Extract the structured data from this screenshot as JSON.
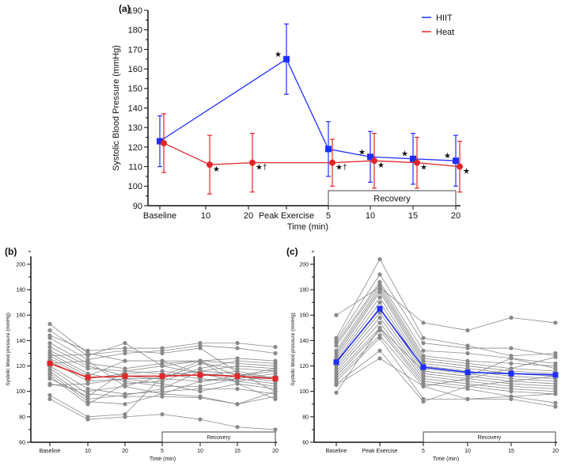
{
  "colors": {
    "hiit": "#1f2eff",
    "heat": "#e0262a",
    "individual": "#8a8a8a"
  },
  "chart_data": [
    {
      "panel": "(a)",
      "type": "line",
      "ylabel": "Systolic Blood Pressure (mmHg)",
      "xlabel": "Time (min)",
      "ylim": [
        90,
        190
      ],
      "yticks": [
        90,
        100,
        110,
        120,
        130,
        140,
        150,
        160,
        170,
        180,
        190
      ],
      "categories": [
        "Baseline",
        "10",
        "20",
        "Peak Exercise",
        "5",
        "10",
        "15",
        "20"
      ],
      "bracket_label": "Recovery",
      "legend": {
        "position": "top-right",
        "entries": [
          "HIIT",
          "Heat"
        ]
      },
      "series": [
        {
          "name": "HIIT",
          "color": "#1f2eff",
          "marker": "square",
          "points": [
            {
              "cat": 0,
              "mean": 123,
              "low": 110,
              "high": 136,
              "mark": ""
            },
            {
              "cat": 3,
              "mean": 165,
              "low": 147,
              "high": 183,
              "mark": "★"
            },
            {
              "cat": 4,
              "mean": 119,
              "low": 105,
              "high": 133,
              "mark": ""
            },
            {
              "cat": 5,
              "mean": 115,
              "low": 102,
              "high": 128,
              "mark": "★"
            },
            {
              "cat": 6,
              "mean": 114,
              "low": 101,
              "high": 127,
              "mark": "★"
            },
            {
              "cat": 7,
              "mean": 113,
              "low": 100,
              "high": 126,
              "mark": "★"
            }
          ]
        },
        {
          "name": "Heat",
          "color": "#e0262a",
          "marker": "circle",
          "points": [
            {
              "cat": 0,
              "mean": 122,
              "low": 107,
              "high": 137,
              "mark": ""
            },
            {
              "cat": 1,
              "mean": 111,
              "low": 96,
              "high": 126,
              "mark": "★"
            },
            {
              "cat": 2,
              "mean": 112,
              "low": 97,
              "high": 127,
              "mark": "★†"
            },
            {
              "cat": 4,
              "mean": 112,
              "low": 100,
              "high": 124,
              "mark": "★†"
            },
            {
              "cat": 5,
              "mean": 113,
              "low": 99,
              "high": 127,
              "mark": "★"
            },
            {
              "cat": 6,
              "mean": 112,
              "low": 99,
              "high": 125,
              "mark": "★"
            },
            {
              "cat": 7,
              "mean": 110,
              "low": 97,
              "high": 123,
              "mark": "★"
            }
          ]
        }
      ]
    },
    {
      "panel": "(b)",
      "type": "line",
      "ylabel": "Systolic blood pressure (mmHg)",
      "xlabel": "Time (min)",
      "ylim": [
        60,
        200
      ],
      "yticks": [
        60,
        80,
        100,
        120,
        140,
        160,
        180,
        200
      ],
      "categories": [
        "Baseline",
        "10",
        "20",
        "5",
        "10",
        "15",
        "20"
      ],
      "bracket_label": "Recovery",
      "mean": {
        "color": "#e0262a",
        "values": [
          122,
          111,
          112,
          112,
          113,
          112,
          110
        ]
      },
      "individuals": [
        [
          153,
          130,
          124,
          124,
          114,
          112,
          108
        ],
        [
          148,
          128,
          138,
          120,
          124,
          112,
          118
        ],
        [
          144,
          132,
          134,
          134,
          138,
          138,
          135
        ],
        [
          142,
          125,
          130,
          132,
          136,
          134,
          130
        ],
        [
          138,
          122,
          118,
          122,
          124,
          126,
          124
        ],
        [
          135,
          120,
          112,
          110,
          122,
          118,
          116
        ],
        [
          132,
          118,
          116,
          114,
          110,
          108,
          112
        ],
        [
          130,
          114,
          108,
          104,
          104,
          110,
          114
        ],
        [
          128,
          112,
          124,
          124,
          124,
          122,
          120
        ],
        [
          126,
          110,
          114,
          116,
          112,
          116,
          110
        ],
        [
          124,
          108,
          110,
          110,
          108,
          110,
          106
        ],
        [
          122,
          124,
          104,
          98,
          96,
          90,
          100
        ],
        [
          120,
          102,
          98,
          100,
          102,
          102,
          98
        ],
        [
          118,
          98,
          96,
          96,
          95,
          90,
          96
        ],
        [
          116,
          94,
          97,
          102,
          116,
          120,
          118
        ],
        [
          114,
          92,
          90,
          98,
          108,
          112,
          116
        ],
        [
          112,
          90,
          106,
          108,
          118,
          124,
          122
        ],
        [
          110,
          96,
          116,
          120,
          114,
          108,
          104
        ],
        [
          106,
          100,
          104,
          112,
          116,
          114,
          110
        ],
        [
          105,
          106,
          110,
          106,
          100,
          106,
          102
        ],
        [
          97,
          80,
          82,
          112,
          124,
          106,
          94
        ],
        [
          94,
          78,
          80,
          82,
          78,
          72,
          70
        ],
        [
          128,
          129,
          132,
          130,
          134,
          115,
          100
        ]
      ]
    },
    {
      "panel": "(c)",
      "type": "line",
      "ylabel": "Systolic blood pressure (mmHg)",
      "xlabel": "Time (min)",
      "ylim": [
        60,
        200
      ],
      "yticks": [
        60,
        80,
        100,
        120,
        140,
        160,
        180,
        200
      ],
      "categories": [
        "Baseline",
        "Peak Exercise",
        "5",
        "10",
        "15",
        "20"
      ],
      "bracket_label": "Recovery",
      "mean": {
        "color": "#1f2eff",
        "values": [
          123,
          165,
          119,
          115,
          114,
          113
        ]
      },
      "individuals": [
        [
          160,
          182,
          154,
          148,
          158,
          154
        ],
        [
          142,
          204,
          142,
          136,
          128,
          130
        ],
        [
          140,
          192,
          138,
          134,
          134,
          128
        ],
        [
          138,
          186,
          132,
          130,
          126,
          122
        ],
        [
          136,
          184,
          128,
          124,
          122,
          120
        ],
        [
          132,
          182,
          126,
          122,
          118,
          116
        ],
        [
          130,
          180,
          124,
          120,
          116,
          114
        ],
        [
          128,
          178,
          122,
          118,
          114,
          112
        ],
        [
          126,
          174,
          120,
          116,
          112,
          110
        ],
        [
          124,
          170,
          118,
          114,
          110,
          108
        ],
        [
          122,
          166,
          116,
          112,
          108,
          106
        ],
        [
          120,
          162,
          114,
          110,
          106,
          104
        ],
        [
          118,
          158,
          112,
          108,
          104,
          102
        ],
        [
          116,
          154,
          110,
          106,
          102,
          100
        ],
        [
          114,
          150,
          108,
          104,
          100,
          98
        ],
        [
          112,
          148,
          106,
          102,
          96,
          91
        ],
        [
          110,
          144,
          104,
          94,
          94,
          88
        ],
        [
          108,
          142,
          94,
          94,
          96,
          98
        ],
        [
          106,
          132,
          92,
          104,
          108,
          112
        ],
        [
          105,
          126,
          104,
          110,
          118,
          127
        ],
        [
          99,
          150,
          116,
          112,
          126,
          118
        ]
      ]
    }
  ]
}
